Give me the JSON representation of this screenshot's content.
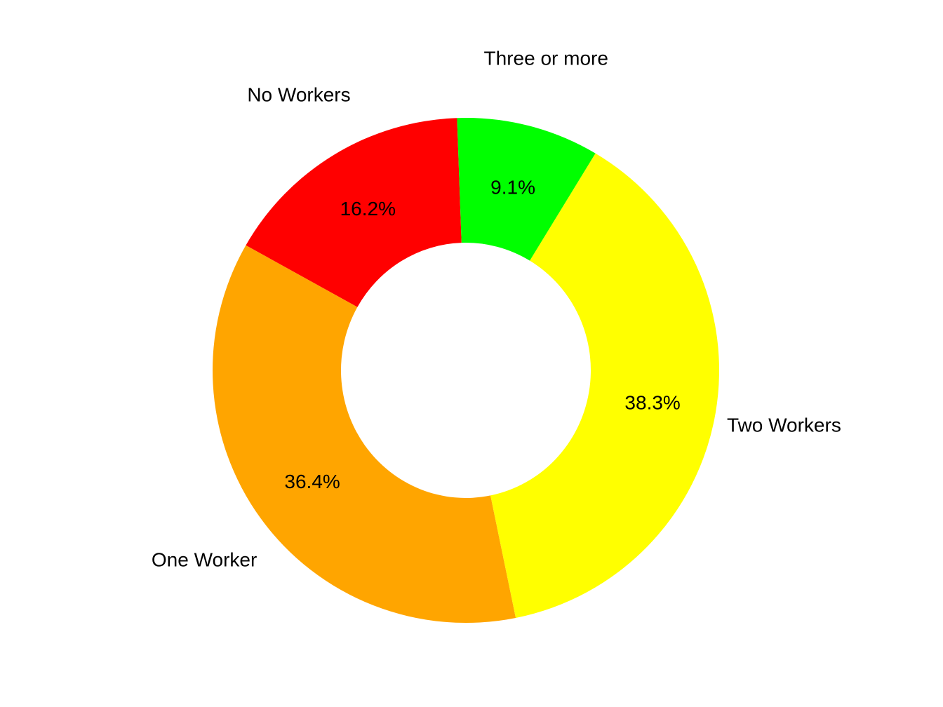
{
  "chart_data": {
    "type": "pie",
    "donut": true,
    "title": "",
    "categories": [
      "No Workers",
      "One Worker",
      "Two Workers",
      "Three or more"
    ],
    "values": [
      16.2,
      36.4,
      38.3,
      9.1
    ],
    "value_labels": [
      "16.2%",
      "36.4%",
      "38.3%",
      "9.1%"
    ],
    "colors": [
      "#ff0000",
      "#ffa500",
      "#ffff00",
      "#00ff00"
    ],
    "legend": "none"
  }
}
